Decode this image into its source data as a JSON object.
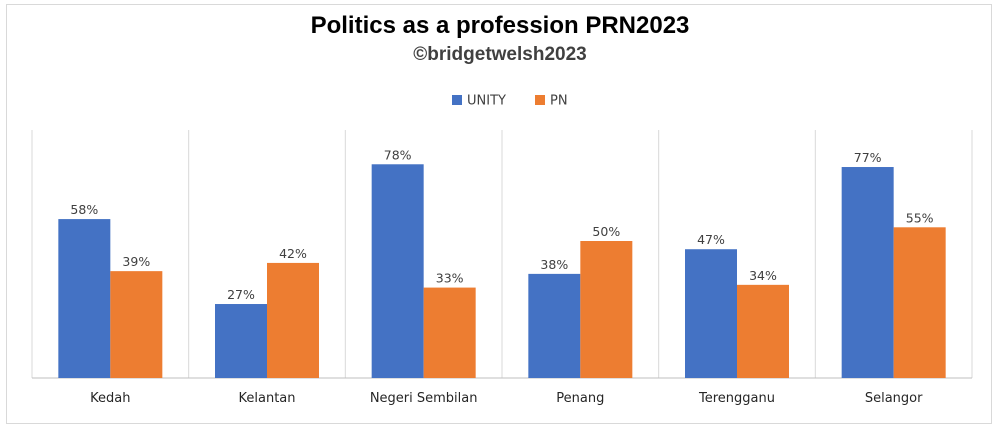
{
  "chart_data": {
    "type": "bar",
    "title": "Politics as a profession PRN2023",
    "subtitle": "©bridgetwelsh2023",
    "categories": [
      "Kedah",
      "Kelantan",
      "Negeri Sembilan",
      "Penang",
      "Terengganu",
      "Selangor"
    ],
    "series": [
      {
        "name": "UNITY",
        "color": "#4472C4",
        "values": [
          58,
          27,
          78,
          38,
          47,
          77
        ],
        "labels": [
          "58%",
          "27%",
          "78%",
          "38%",
          "47%",
          "77%"
        ]
      },
      {
        "name": "PN",
        "color": "#ED7D31",
        "values": [
          39,
          42,
          33,
          50,
          34,
          55
        ],
        "labels": [
          "39%",
          "42%",
          "33%",
          "50%",
          "34%",
          "55%"
        ]
      }
    ],
    "ylim": [
      0,
      100
    ],
    "legend": "top-center",
    "grid": false
  }
}
